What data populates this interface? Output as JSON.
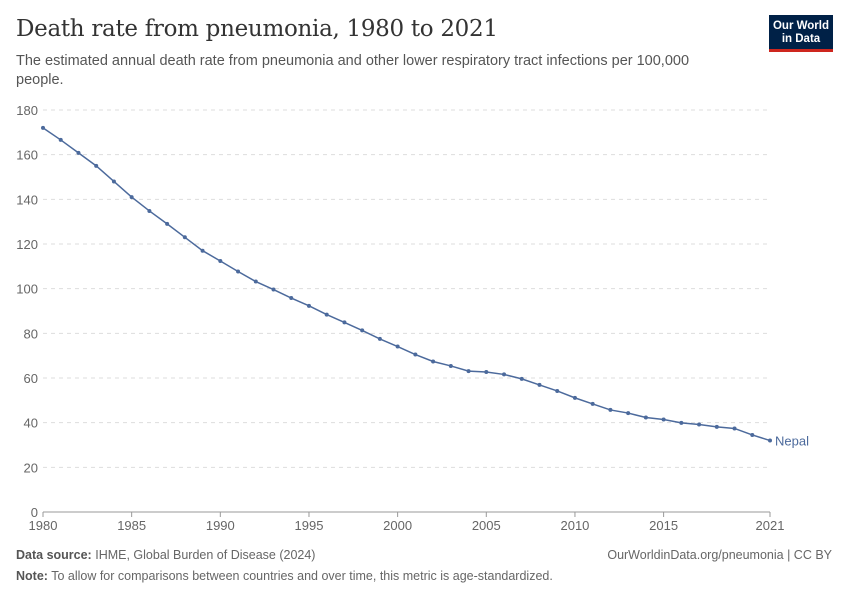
{
  "header": {
    "title": "Death rate from pneumonia, 1980 to 2021",
    "subtitle": "The estimated annual death rate from pneumonia and other lower respiratory tract infections per 100,000 people.",
    "logo": "Our World in Data"
  },
  "footer": {
    "source_label": "Data source:",
    "source": "IHME, Global Burden of Disease (2024)",
    "url": "OurWorldinData.org/pneumonia | CC BY",
    "note_label": "Note:",
    "note": "To allow for comparisons between countries and over time, this metric is age-standardized."
  },
  "chart_data": {
    "type": "line",
    "title": "Death rate from pneumonia, 1980 to 2021",
    "xlabel": "",
    "ylabel": "",
    "xlim": [
      1980,
      2021
    ],
    "ylim": [
      0,
      180
    ],
    "xticks": [
      1980,
      1985,
      1990,
      1995,
      2000,
      2005,
      2010,
      2015,
      2021
    ],
    "yticks": [
      0,
      20,
      40,
      60,
      80,
      100,
      120,
      140,
      160,
      180
    ],
    "grid": "horizontal dashed",
    "line_color": "#4c6a9c",
    "series": [
      {
        "name": "Nepal",
        "x": [
          1980,
          1981,
          1982,
          1983,
          1984,
          1985,
          1986,
          1987,
          1988,
          1989,
          1990,
          1991,
          1992,
          1993,
          1994,
          1995,
          1996,
          1997,
          1998,
          1999,
          2000,
          2001,
          2002,
          2003,
          2004,
          2005,
          2006,
          2007,
          2008,
          2009,
          2010,
          2011,
          2012,
          2013,
          2014,
          2015,
          2016,
          2017,
          2018,
          2019,
          2020,
          2021
        ],
        "values": [
          172,
          166.6,
          160.8,
          155,
          148,
          141,
          134.8,
          129,
          123,
          117,
          112.4,
          107.7,
          103.2,
          99.6,
          95.8,
          92.3,
          88.4,
          84.9,
          81.3,
          77.5,
          74.1,
          70.5,
          67.4,
          65.4,
          63.1,
          62.7,
          61.6,
          59.6,
          56.9,
          54.2,
          51.1,
          48.4,
          45.7,
          44.3,
          42.3,
          41.4,
          39.9,
          39.2,
          38.1,
          37.4,
          34.5,
          32.0
        ]
      }
    ]
  }
}
